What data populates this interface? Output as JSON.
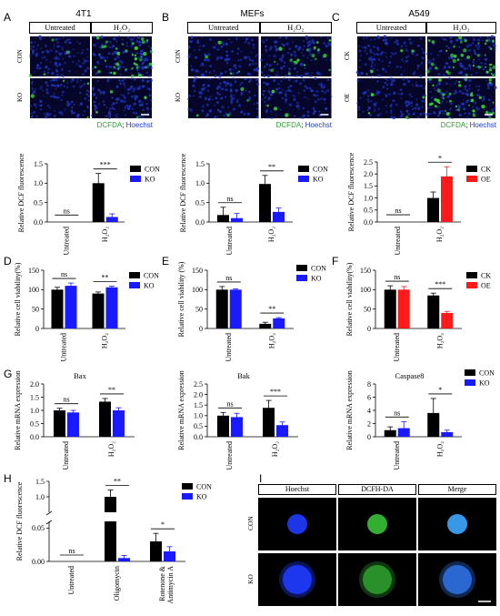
{
  "panel_letters": [
    "A",
    "B",
    "C",
    "D",
    "E",
    "F",
    "G",
    "H",
    "I"
  ],
  "micro": [
    {
      "title": "4T1",
      "col_headers": [
        "Untreated",
        "H₂O₂"
      ],
      "row_labels": [
        "CON",
        "KO"
      ],
      "caption_green": "DCFDA",
      "caption_sep": ";",
      "caption_blue": "Hoechst",
      "green_signal": [
        [
          "low",
          "high"
        ],
        [
          "low",
          "low"
        ]
      ]
    },
    {
      "title": "MEFs",
      "col_headers": [
        "Untreated",
        "H₂O₂"
      ],
      "row_labels": [
        "CON",
        "KO"
      ],
      "caption_green": "DCFDA",
      "caption_sep": ";",
      "caption_blue": "Hoechst",
      "green_signal": [
        [
          "low",
          "med"
        ],
        [
          "low",
          "low"
        ]
      ]
    },
    {
      "title": "A549",
      "col_headers": [
        "Untreated",
        "H₂O₂"
      ],
      "row_labels": [
        "CK",
        "OE"
      ],
      "caption_green": "DCFDA",
      "caption_sep": ";",
      "caption_blue": "Hoechst",
      "green_signal": [
        [
          "low",
          "high"
        ],
        [
          "low",
          "high"
        ]
      ]
    }
  ],
  "colors": {
    "black": "#000000",
    "blue": "#1a1aff",
    "red": "#ff1a1a",
    "green": "#33cc33"
  },
  "chart_data": [
    {
      "id": "A-bar",
      "type": "bar",
      "ylabel": "Relative DCF fluorescence",
      "categories": [
        "Untreated",
        "H₂O₂"
      ],
      "ylim": [
        0,
        1.5
      ],
      "yticks": [
        "0.0",
        "0.5",
        "1.0",
        "1.5"
      ],
      "series": [
        {
          "name": "CON",
          "color": "#000000",
          "values": [
            0,
            1.0
          ],
          "errors": [
            0,
            0.25
          ]
        },
        {
          "name": "KO",
          "color": "#1a1aff",
          "values": [
            0,
            0.13
          ],
          "errors": [
            0,
            0.08
          ]
        }
      ],
      "sig": [
        "ns",
        "***"
      ]
    },
    {
      "id": "B-bar",
      "type": "bar",
      "ylabel": "Relative DCF fluorescence",
      "categories": [
        "Untreated",
        "H₂O₂"
      ],
      "ylim": [
        0,
        1.5
      ],
      "yticks": [
        "0.0",
        "0.5",
        "1.0",
        "1.5"
      ],
      "series": [
        {
          "name": "CON",
          "color": "#000000",
          "values": [
            0.18,
            0.98
          ],
          "errors": [
            0.2,
            0.22
          ]
        },
        {
          "name": "KO",
          "color": "#1a1aff",
          "values": [
            0.1,
            0.26
          ],
          "errors": [
            0.12,
            0.1
          ]
        }
      ],
      "sig": [
        "ns",
        "**"
      ]
    },
    {
      "id": "C-bar",
      "type": "bar",
      "ylabel": "Relative DCF fluorescence",
      "categories": [
        "Untreated",
        "H₂O₂"
      ],
      "ylim": [
        0,
        2.5
      ],
      "yticks": [
        "0.0",
        "0.5",
        "1.0",
        "1.5",
        "2.0",
        "2.5"
      ],
      "series": [
        {
          "name": "CK",
          "color": "#000000",
          "values": [
            0,
            1.0
          ],
          "errors": [
            0,
            0.25
          ]
        },
        {
          "name": "OE",
          "color": "#ff1a1a",
          "values": [
            0,
            1.9
          ],
          "errors": [
            0,
            0.4
          ]
        }
      ],
      "sig": [
        "ns",
        "*"
      ]
    },
    {
      "id": "D-bar",
      "type": "bar",
      "ylabel": "Relative cell viability(%)",
      "categories": [
        "Untreated",
        "H₂O₂"
      ],
      "ylim": [
        0,
        150
      ],
      "yticks": [
        "0",
        "50",
        "100",
        "150"
      ],
      "series": [
        {
          "name": "CON",
          "color": "#000000",
          "values": [
            100,
            90
          ],
          "errors": [
            6,
            4
          ]
        },
        {
          "name": "KO",
          "color": "#1a1aff",
          "values": [
            110,
            106
          ],
          "errors": [
            7,
            3
          ]
        }
      ],
      "sig": [
        "ns",
        "**"
      ]
    },
    {
      "id": "E-bar",
      "type": "bar",
      "ylabel": "Relative cell viability (%)",
      "categories": [
        "Untreated",
        "H₂O₂"
      ],
      "ylim": [
        0,
        150
      ],
      "yticks": [
        "0",
        "50",
        "100",
        "150"
      ],
      "series": [
        {
          "name": "CON",
          "color": "#000000",
          "values": [
            100,
            12
          ],
          "errors": [
            8,
            4
          ]
        },
        {
          "name": "KO",
          "color": "#1a1aff",
          "values": [
            100,
            26
          ],
          "errors": [
            2,
            2
          ]
        }
      ],
      "sig": [
        "ns",
        "**"
      ]
    },
    {
      "id": "F-bar",
      "type": "bar",
      "ylabel": "Relative cell viability(%)",
      "categories": [
        "Untreated",
        "H₂O₂"
      ],
      "ylim": [
        0,
        150
      ],
      "yticks": [
        "0",
        "50",
        "100",
        "150"
      ],
      "series": [
        {
          "name": "CK",
          "color": "#000000",
          "values": [
            100,
            85
          ],
          "errors": [
            10,
            6
          ]
        },
        {
          "name": "OE",
          "color": "#ff1a1a",
          "values": [
            100,
            40
          ],
          "errors": [
            8,
            4
          ]
        }
      ],
      "sig": [
        "ns",
        "***"
      ]
    },
    {
      "id": "G1-bar",
      "type": "bar",
      "title": "Bax",
      "ylabel": "Relative mRNA expression",
      "categories": [
        "Untreated",
        "H₂O₂"
      ],
      "ylim": [
        0,
        2.0
      ],
      "yticks": [
        "0.0",
        "0.5",
        "1.0",
        "1.5",
        "2.0"
      ],
      "series": [
        {
          "name": "CON",
          "color": "#000000",
          "values": [
            1.0,
            1.33
          ],
          "errors": [
            0.08,
            0.12
          ]
        },
        {
          "name": "KO",
          "color": "#1a1aff",
          "values": [
            0.92,
            1.0
          ],
          "errors": [
            0.08,
            0.1
          ]
        }
      ],
      "sig": [
        "ns",
        "**"
      ]
    },
    {
      "id": "G2-bar",
      "type": "bar",
      "title": "Bak",
      "ylabel": "Relative mRNA expression",
      "categories": [
        "Untreated",
        "H₂O₂"
      ],
      "ylim": [
        0,
        2.5
      ],
      "yticks": [
        "0.0",
        "0.5",
        "1.0",
        "1.5",
        "2.0",
        "2.5"
      ],
      "series": [
        {
          "name": "CON",
          "color": "#000000",
          "values": [
            1.0,
            1.37
          ],
          "errors": [
            0.15,
            0.35
          ]
        },
        {
          "name": "KO",
          "color": "#1a1aff",
          "values": [
            0.93,
            0.55
          ],
          "errors": [
            0.18,
            0.15
          ]
        }
      ],
      "sig": [
        "ns",
        "***"
      ]
    },
    {
      "id": "G3-bar",
      "type": "bar",
      "title": "Caspase8",
      "ylabel": "Relative mRNA expression",
      "categories": [
        "Untreated",
        "H₂O₂"
      ],
      "ylim": [
        0,
        8
      ],
      "yticks": [
        "0",
        "2",
        "4",
        "6",
        "8"
      ],
      "series": [
        {
          "name": "CON",
          "color": "#000000",
          "values": [
            1.0,
            3.6
          ],
          "errors": [
            0.5,
            2.2
          ]
        },
        {
          "name": "KO",
          "color": "#1a1aff",
          "values": [
            1.3,
            0.7
          ],
          "errors": [
            1.0,
            0.3
          ]
        }
      ],
      "sig": [
        "ns",
        "*"
      ]
    },
    {
      "id": "H-bar",
      "type": "bar",
      "ylabel": "Relative DCF fluorescence",
      "categories": [
        "Untreated",
        "Oligomycin",
        "Rotenone & Antimycin A"
      ],
      "broken_axis": {
        "upper_ticks": [
          "1.0",
          "1.5"
        ],
        "lower_ticks": [
          "0.00",
          "0.05"
        ],
        "upper_range": [
          0.5,
          1.5
        ],
        "lower_range": [
          0,
          0.06
        ]
      },
      "series": [
        {
          "name": "CON",
          "color": "#000000",
          "values": [
            0,
            1.0,
            0.03
          ],
          "errors": [
            0,
            0.22,
            0.012
          ]
        },
        {
          "name": "KO",
          "color": "#1a1aff",
          "values": [
            0,
            0.005,
            0.015
          ],
          "errors": [
            0,
            0.004,
            0.007
          ]
        }
      ],
      "sig": [
        "ns",
        "**",
        "*"
      ]
    }
  ],
  "panel_I": {
    "col_headers": [
      "Hoechst",
      "DCFH-DA",
      "Merge"
    ],
    "row_labels": [
      "CON",
      "KO"
    ]
  }
}
